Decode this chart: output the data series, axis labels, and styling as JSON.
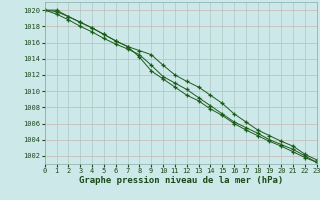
{
  "title": "Graphe pression niveau de la mer (hPa)",
  "background_color": "#cce8e8",
  "plot_bg_color": "#cce8e8",
  "grid_color_major": "#c8a0a0",
  "grid_color_minor": "#b8d4d4",
  "line_color": "#1a5c1a",
  "border_color": "#8aaaaa",
  "x_values": [
    0,
    1,
    2,
    3,
    4,
    5,
    6,
    7,
    8,
    9,
    10,
    11,
    12,
    13,
    14,
    15,
    16,
    17,
    18,
    19,
    20,
    21,
    22,
    23
  ],
  "line1": [
    1020.0,
    1020.0,
    1019.2,
    1018.5,
    1017.8,
    1017.0,
    1016.2,
    1015.5,
    1015.0,
    1014.5,
    1013.2,
    1012.0,
    1011.2,
    1010.5,
    1009.5,
    1008.5,
    1007.2,
    1006.2,
    1005.2,
    1004.5,
    1003.8,
    1003.2,
    1002.2,
    1001.5
  ],
  "line2": [
    1020.0,
    1019.5,
    1018.8,
    1018.0,
    1017.3,
    1016.5,
    1015.8,
    1015.2,
    1014.5,
    1013.2,
    1011.8,
    1011.0,
    1010.2,
    1009.2,
    1008.2,
    1007.2,
    1006.2,
    1005.5,
    1004.8,
    1004.0,
    1003.4,
    1002.8,
    1002.0,
    1001.2
  ],
  "line3": [
    1020.0,
    1019.8,
    1019.2,
    1018.5,
    1017.8,
    1017.0,
    1016.2,
    1015.5,
    1014.2,
    1012.5,
    1011.5,
    1010.5,
    1009.5,
    1008.8,
    1007.8,
    1007.0,
    1006.0,
    1005.2,
    1004.5,
    1003.8,
    1003.2,
    1002.5,
    1001.8,
    1001.2
  ],
  "ylim": [
    1001,
    1021
  ],
  "ytick_min": 1002,
  "ytick_max": 1020,
  "ytick_step": 2,
  "xlim": [
    0,
    23
  ],
  "xticks": [
    0,
    1,
    2,
    3,
    4,
    5,
    6,
    7,
    8,
    9,
    10,
    11,
    12,
    13,
    14,
    15,
    16,
    17,
    18,
    19,
    20,
    21,
    22,
    23
  ],
  "title_fontsize": 6.5,
  "tick_fontsize": 5.0,
  "marker": "+",
  "linewidth": 0.7,
  "markersize": 3.5
}
